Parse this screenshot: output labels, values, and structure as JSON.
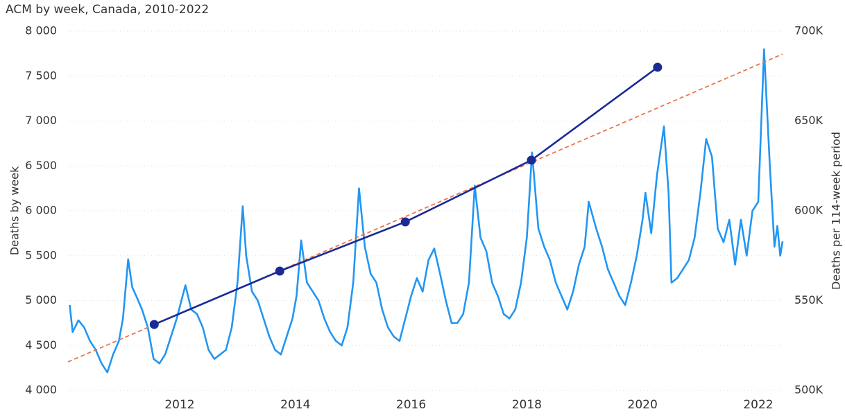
{
  "chart_data": {
    "type": "line",
    "title": "ACM by week, Canada, 2010-2022",
    "y_label": "Deaths by week",
    "y2_label": "Deaths per 114-week period",
    "xlim": [
      2010.07,
      2022.42
    ],
    "xticks": [
      2012,
      2014,
      2016,
      2018,
      2020,
      2022
    ],
    "ylim": [
      4000,
      8000
    ],
    "yticks": [
      {
        "value": 4000,
        "label": "4 000"
      },
      {
        "value": 4500,
        "label": "4 500"
      },
      {
        "value": 5000,
        "label": "5 000"
      },
      {
        "value": 5500,
        "label": "5 500"
      },
      {
        "value": 6000,
        "label": "6 000"
      },
      {
        "value": 6500,
        "label": "6 500"
      },
      {
        "value": 7000,
        "label": "7 000"
      },
      {
        "value": 7500,
        "label": "7 500"
      },
      {
        "value": 8000,
        "label": "8 000"
      }
    ],
    "y2lim": [
      500000,
      700000
    ],
    "y2ticks": [
      {
        "value": 500000,
        "label": "500K"
      },
      {
        "value": 550000,
        "label": "550K"
      },
      {
        "value": 600000,
        "label": "600K"
      },
      {
        "value": 650000,
        "label": "650K"
      },
      {
        "value": 700000,
        "label": "700K"
      }
    ],
    "grid": true,
    "series": [
      {
        "color": "#2196f3",
        "style": "solid",
        "markers": false,
        "x": [
          2010.1,
          2010.15,
          2010.25,
          2010.35,
          2010.45,
          2010.55,
          2010.65,
          2010.75,
          2010.85,
          2010.95,
          2011.02,
          2011.11,
          2011.18,
          2011.25,
          2011.35,
          2011.45,
          2011.55,
          2011.65,
          2011.75,
          2011.85,
          2011.95,
          2012.05,
          2012.1,
          2012.2,
          2012.3,
          2012.4,
          2012.5,
          2012.6,
          2012.7,
          2012.8,
          2012.9,
          2013.0,
          2013.09,
          2013.15,
          2013.25,
          2013.35,
          2013.45,
          2013.55,
          2013.65,
          2013.75,
          2013.85,
          2013.95,
          2014.02,
          2014.1,
          2014.2,
          2014.3,
          2014.4,
          2014.5,
          2014.6,
          2014.7,
          2014.8,
          2014.9,
          2015.0,
          2015.1,
          2015.2,
          2015.3,
          2015.4,
          2015.5,
          2015.6,
          2015.7,
          2015.8,
          2015.9,
          2016.0,
          2016.1,
          2016.2,
          2016.3,
          2016.4,
          2016.5,
          2016.6,
          2016.7,
          2016.8,
          2016.9,
          2017.0,
          2017.1,
          2017.2,
          2017.3,
          2017.4,
          2017.5,
          2017.6,
          2017.7,
          2017.8,
          2017.9,
          2018.0,
          2018.09,
          2018.2,
          2018.3,
          2018.4,
          2018.5,
          2018.6,
          2018.7,
          2018.8,
          2018.9,
          2019.0,
          2019.07,
          2019.2,
          2019.3,
          2019.4,
          2019.5,
          2019.6,
          2019.7,
          2019.8,
          2019.9,
          2020.0,
          2020.05,
          2020.15,
          2020.25,
          2020.37,
          2020.45,
          2020.5,
          2020.6,
          2020.7,
          2020.8,
          2020.9,
          2021.0,
          2021.1,
          2021.2,
          2021.3,
          2021.4,
          2021.5,
          2021.6,
          2021.7,
          2021.8,
          2021.9,
          2022.0,
          2022.1,
          2022.2,
          2022.28,
          2022.33,
          2022.38,
          2022.42
        ],
        "values": [
          4950,
          4650,
          4780,
          4700,
          4550,
          4450,
          4300,
          4200,
          4400,
          4550,
          4800,
          5460,
          5150,
          5050,
          4900,
          4700,
          4350,
          4300,
          4400,
          4600,
          4800,
          5050,
          5170,
          4900,
          4850,
          4700,
          4450,
          4350,
          4400,
          4450,
          4700,
          5200,
          6050,
          5500,
          5100,
          5000,
          4800,
          4600,
          4450,
          4400,
          4600,
          4800,
          5050,
          5670,
          5200,
          5100,
          5000,
          4800,
          4650,
          4550,
          4500,
          4700,
          5200,
          6250,
          5600,
          5300,
          5200,
          4900,
          4700,
          4600,
          4550,
          4800,
          5050,
          5250,
          5100,
          5450,
          5580,
          5300,
          5000,
          4750,
          4750,
          4850,
          5200,
          6280,
          5700,
          5550,
          5200,
          5050,
          4850,
          4800,
          4900,
          5200,
          5700,
          6650,
          5800,
          5600,
          5450,
          5200,
          5050,
          4900,
          5100,
          5400,
          5600,
          6100,
          5800,
          5600,
          5350,
          5200,
          5050,
          4950,
          5200,
          5500,
          5900,
          6200,
          5750,
          6400,
          6940,
          6200,
          5200,
          5250,
          5350,
          5450,
          5700,
          6200,
          6800,
          6600,
          5800,
          5650,
          5900,
          5400,
          5900,
          5500,
          6000,
          6100,
          7800,
          6500,
          5600,
          5830,
          5500,
          5660
        ]
      },
      {
        "color": "#e8744a",
        "style": "dashed",
        "markers": false,
        "x": [
          2010.07,
          2022.42
        ],
        "values": [
          4317,
          7745
        ]
      },
      {
        "color": "#1a2a96",
        "style": "solid",
        "markers": true,
        "axis": "y2",
        "x": [
          2011.56,
          2013.73,
          2015.9,
          2018.08,
          2020.26
        ],
        "values": [
          536700,
          566400,
          593800,
          628200,
          679900
        ]
      }
    ]
  }
}
